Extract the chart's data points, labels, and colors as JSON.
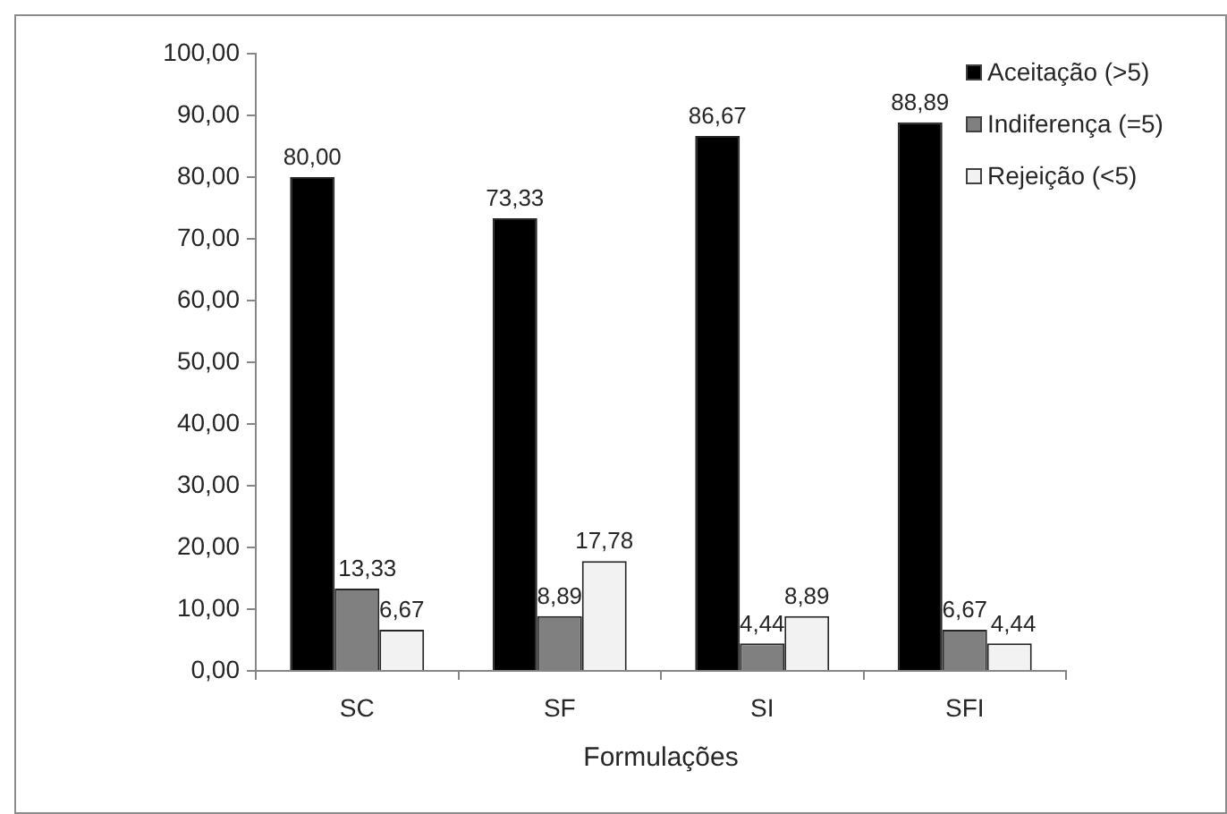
{
  "chart_data": {
    "type": "bar",
    "xlabel": "Formulações",
    "categories": [
      "SC",
      "SF",
      "SI",
      "SFI"
    ],
    "series": [
      {
        "name": "Aceitação (>5)",
        "color": "#000000",
        "values": [
          80,
          73.33,
          86.67,
          88.89
        ],
        "value_labels": [
          "80,00",
          "73,33",
          "86,67",
          "88,89"
        ]
      },
      {
        "name": "Indiferença (=5)",
        "color": "#808080",
        "values": [
          13.33,
          8.89,
          4.44,
          6.67
        ],
        "value_labels": [
          "13,33",
          "8,89",
          "4,44",
          "6,67"
        ]
      },
      {
        "name": "Rejeição (<5)",
        "color": "#f2f2f2",
        "values": [
          6.67,
          17.78,
          8.89,
          4.44
        ],
        "value_labels": [
          "6,67",
          "17,78",
          "8,89",
          "4,44"
        ]
      }
    ],
    "ylim": [
      0,
      100
    ],
    "yticks": [
      {
        "value": 0,
        "label": "0,00"
      },
      {
        "value": 10,
        "label": "10,00"
      },
      {
        "value": 20,
        "label": "20,00"
      },
      {
        "value": 30,
        "label": "30,00"
      },
      {
        "value": 40,
        "label": "40,00"
      },
      {
        "value": 50,
        "label": "50,00"
      },
      {
        "value": 60,
        "label": "60,00"
      },
      {
        "value": 70,
        "label": "70,00"
      },
      {
        "value": 80,
        "label": "80,00"
      },
      {
        "value": 90,
        "label": "90,00"
      },
      {
        "value": 100,
        "label": "100,00"
      }
    ],
    "grid": false,
    "legend": "top right"
  }
}
